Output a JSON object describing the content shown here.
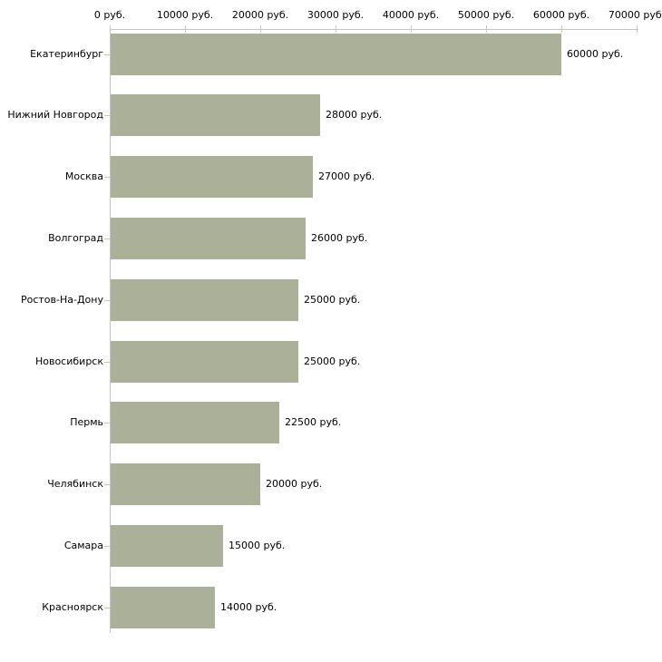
{
  "chart_data": {
    "type": "bar",
    "orientation": "horizontal",
    "currency_unit": "руб.",
    "categories": [
      "Екатеринбург",
      "Нижний Новгород",
      "Москва",
      "Волгоград",
      "Ростов-На-Дону",
      "Новосибирск",
      "Пермь",
      "Челябинск",
      "Самара",
      "Красноярск"
    ],
    "values": [
      60000,
      28000,
      27000,
      26000,
      25000,
      25000,
      22500,
      20000,
      15000,
      14000
    ],
    "value_labels": [
      "60000 руб.",
      "28000 руб.",
      "27000 руб.",
      "26000 руб.",
      "25000 руб.",
      "25000 руб.",
      "22500 руб.",
      "20000 руб.",
      "15000 руб.",
      "14000 руб."
    ],
    "x_axis": {
      "position": "top",
      "range": [
        0,
        70000
      ],
      "tick_values": [
        0,
        10000,
        20000,
        30000,
        40000,
        50000,
        60000,
        70000
      ],
      "tick_labels": [
        "0 руб.",
        "10000 руб.",
        "20000 руб.",
        "30000 руб.",
        "40000 руб.",
        "50000 руб.",
        "60000 руб.",
        "70000 руб."
      ]
    },
    "grid": false,
    "legend": false,
    "colors": {
      "bar": "#abb198",
      "axis_line": "#c5c5c5",
      "tick": "#cdcd9d",
      "text": "#000000",
      "background": "#ffffff"
    }
  }
}
